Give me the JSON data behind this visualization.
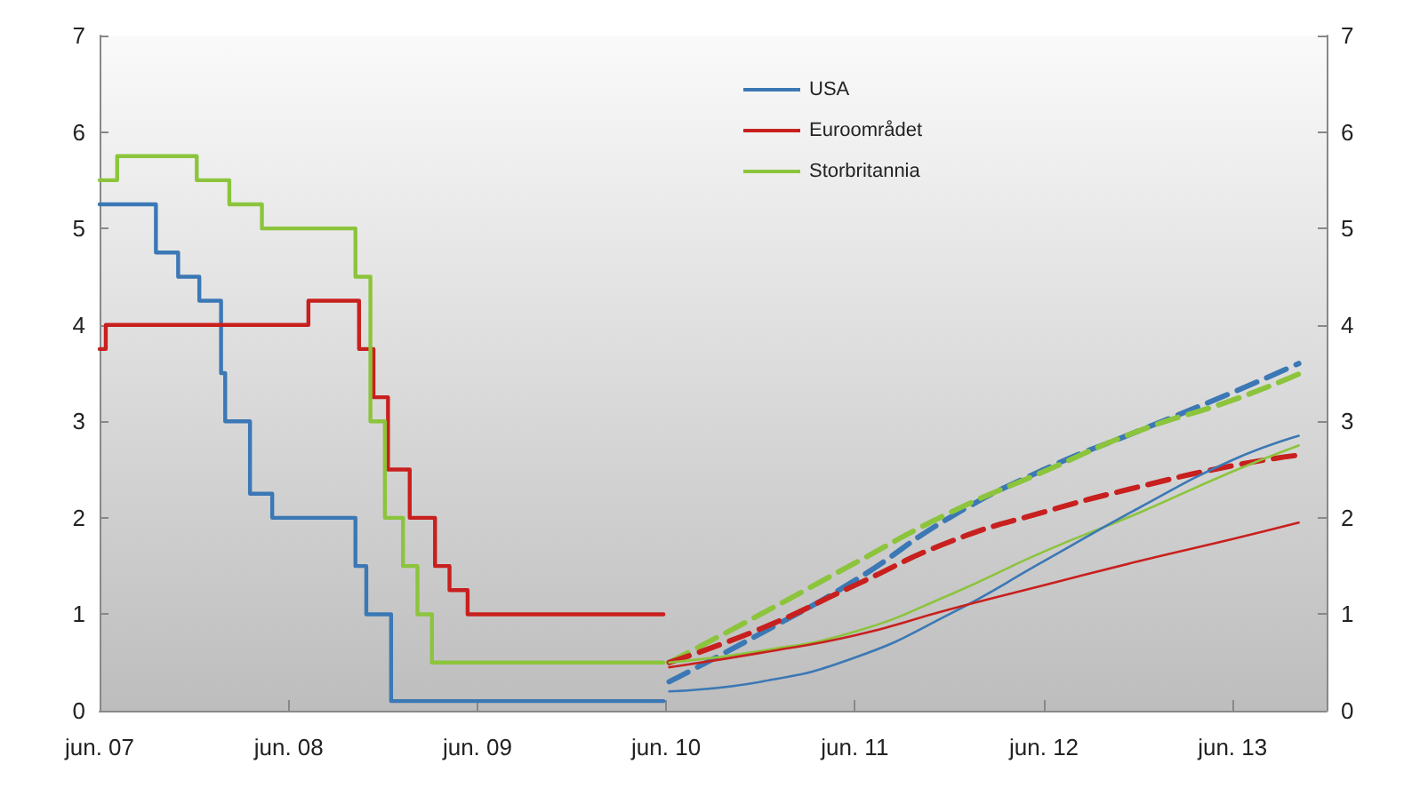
{
  "chart_data": {
    "type": "line",
    "xlim": [
      "2007-06-01",
      "2013-11-30"
    ],
    "xticks": [
      {
        "value": "2007-06-01",
        "label": "jun. 07"
      },
      {
        "value": "2008-06-01",
        "label": "jun. 08"
      },
      {
        "value": "2009-06-01",
        "label": "jun. 09"
      },
      {
        "value": "2010-06-01",
        "label": "jun. 10"
      },
      {
        "value": "2011-06-01",
        "label": "jun. 11"
      },
      {
        "value": "2012-06-01",
        "label": "jun. 12"
      },
      {
        "value": "2013-06-01",
        "label": "jun. 13"
      }
    ],
    "ylim": [
      0,
      7
    ],
    "yticks": [
      0,
      1,
      2,
      3,
      4,
      5,
      6,
      7
    ],
    "y2lim": [
      0,
      7
    ],
    "y2ticks": [
      0,
      1,
      2,
      3,
      4,
      5,
      6,
      7
    ],
    "grid": false,
    "legend": "top",
    "marker": "none",
    "series": [
      {
        "name": "USA",
        "type": "step",
        "color": "#3b78b5",
        "x": [
          "2007-06-01",
          "2007-09-18",
          "2007-10-31",
          "2007-12-11",
          "2008-01-22",
          "2008-01-30",
          "2008-03-18",
          "2008-04-30",
          "2008-10-08",
          "2008-10-29",
          "2008-12-16",
          "2010-05-27"
        ],
        "values": [
          5.25,
          4.75,
          4.5,
          4.25,
          3.5,
          3.0,
          2.25,
          2.0,
          1.5,
          1.0,
          0.1,
          0.1
        ]
      },
      {
        "name": "Euroområdet",
        "type": "step",
        "color": "#c8201e",
        "x": [
          "2007-06-01",
          "2007-06-13",
          "2008-07-09",
          "2008-10-15",
          "2008-11-12",
          "2008-12-10",
          "2009-01-21",
          "2009-03-11",
          "2009-04-08",
          "2009-05-13",
          "2010-05-27"
        ],
        "values": [
          3.75,
          4.0,
          4.25,
          3.75,
          3.25,
          2.5,
          2.0,
          1.5,
          1.25,
          1.0,
          1.0
        ]
      },
      {
        "name": "Storbritannia",
        "type": "step",
        "color": "#8cc43c",
        "x": [
          "2007-06-01",
          "2007-07-05",
          "2007-12-06",
          "2008-02-07",
          "2008-04-10",
          "2008-10-08",
          "2008-11-06",
          "2008-12-04",
          "2009-01-08",
          "2009-02-05",
          "2009-03-05",
          "2010-05-27"
        ],
        "values": [
          5.5,
          5.75,
          5.5,
          5.25,
          5.0,
          4.5,
          3.0,
          2.0,
          1.5,
          1.0,
          0.5,
          0.5
        ]
      },
      {
        "color": "#3b78b5",
        "line_style": "dashed",
        "x": [
          "2010-06-07",
          "2010-12-01",
          "2011-06-01",
          "2011-12-01",
          "2012-06-01",
          "2012-12-01",
          "2013-06-01",
          "2013-10-07"
        ],
        "values": [
          0.3,
          0.8,
          1.35,
          2.0,
          2.5,
          2.9,
          3.3,
          3.6
        ]
      },
      {
        "color": "#8cc43c",
        "line_style": "dashed",
        "x": [
          "2010-06-07",
          "2010-12-01",
          "2011-06-01",
          "2011-12-01",
          "2012-06-01",
          "2012-12-01",
          "2013-06-01",
          "2013-10-07"
        ],
        "values": [
          0.5,
          1.0,
          1.53,
          2.05,
          2.48,
          2.9,
          3.22,
          3.49
        ]
      },
      {
        "color": "#c8201e",
        "line_style": "dashed",
        "x": [
          "2010-06-07",
          "2010-12-01",
          "2011-06-01",
          "2011-12-01",
          "2012-06-01",
          "2012-12-01",
          "2013-06-01",
          "2013-10-07"
        ],
        "values": [
          0.5,
          0.85,
          1.3,
          1.75,
          2.06,
          2.32,
          2.54,
          2.65
        ]
      },
      {
        "color": "#8cc43c",
        "line_style": "solid",
        "x": [
          "2010-06-07",
          "2010-12-01",
          "2011-06-01",
          "2011-12-01",
          "2012-06-01",
          "2012-12-01",
          "2013-06-01",
          "2013-10-07"
        ],
        "values": [
          0.5,
          0.62,
          0.82,
          1.2,
          1.65,
          2.05,
          2.48,
          2.75
        ]
      },
      {
        "color": "#3b78b5",
        "line_style": "solid",
        "x": [
          "2010-06-07",
          "2010-12-01",
          "2011-06-01",
          "2011-12-01",
          "2012-06-01",
          "2012-12-01",
          "2013-06-01",
          "2013-10-07"
        ],
        "values": [
          0.2,
          0.3,
          0.55,
          1.0,
          1.55,
          2.1,
          2.6,
          2.85
        ]
      },
      {
        "color": "#c8201e",
        "line_style": "solid",
        "x": [
          "2010-06-07",
          "2010-12-01",
          "2011-06-01",
          "2011-12-01",
          "2012-06-01",
          "2012-12-01",
          "2013-06-01",
          "2013-10-07"
        ],
        "values": [
          0.45,
          0.6,
          0.78,
          1.05,
          1.3,
          1.55,
          1.78,
          1.95
        ]
      }
    ]
  }
}
